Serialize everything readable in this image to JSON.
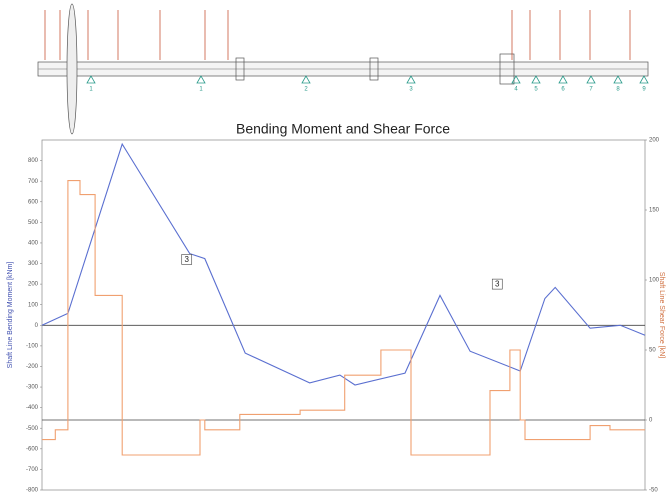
{
  "chart_data": {
    "type": "line",
    "title": "Bending Moment and Shear Force",
    "ylabel": "Shaft Line Bending Moment [kNm]",
    "y2label": "Shaft Line Shear Force [kN]",
    "xlim": [
      0,
      100
    ],
    "ylim": [
      -800,
      900
    ],
    "yticks": [
      -800,
      -700,
      -600,
      -500,
      -400,
      -300,
      -200,
      -100,
      0,
      100,
      200,
      300,
      400,
      500,
      600,
      700,
      800
    ],
    "y2lim": [
      -50,
      200
    ],
    "y2ticks": [
      -50,
      0,
      50,
      100,
      150,
      200
    ],
    "series": [
      {
        "name": "Bending Moment",
        "color": "#5a6fd0",
        "x": [
          0,
          4.3,
          13.3,
          24.5,
          27.0,
          33.7,
          44.4,
          49.4,
          51.9,
          60.2,
          66.0,
          71.0,
          79.3,
          83.4,
          85.1,
          90.9,
          95.9,
          100
        ],
        "values": [
          0,
          58,
          880,
          348,
          324,
          -135,
          -280,
          -242,
          -290,
          -232,
          145,
          -126,
          -222,
          130,
          184,
          -14,
          0,
          -48
        ]
      },
      {
        "name": "Shear Force",
        "color": "#f0a070",
        "axis": "y2",
        "x": [
          0,
          2.2,
          2.2,
          4.3,
          4.3,
          6.3,
          6.3,
          8.8,
          8.8,
          13.3,
          13.3,
          26.2,
          26.2,
          27.0,
          27.0,
          32.8,
          32.8,
          42.8,
          42.8,
          50.2,
          50.2,
          56.2,
          56.2,
          61.2,
          61.2,
          74.3,
          74.3,
          77.6,
          77.6,
          79.3,
          79.3,
          80.1,
          80.1,
          90.9,
          90.9,
          94.2,
          94.2,
          100
        ],
        "values": [
          -14,
          -14,
          -7,
          -7,
          171,
          171,
          161,
          161,
          89,
          89,
          -25,
          -25,
          0,
          0,
          -7,
          -7,
          4,
          4,
          7,
          7,
          32,
          32,
          50,
          50,
          -25,
          -25,
          21,
          21,
          50,
          50,
          0,
          0,
          -14,
          -14,
          -4,
          -4,
          -7,
          -7
        ]
      }
    ],
    "annotations": [
      {
        "text": "3",
        "x": 24.0,
        "y": 320
      },
      {
        "text": "3",
        "x": 75.5,
        "y": 200
      }
    ],
    "bearings": [
      "1",
      "1",
      "2",
      "3",
      "4",
      "5",
      "6",
      "7",
      "8",
      "9"
    ]
  }
}
